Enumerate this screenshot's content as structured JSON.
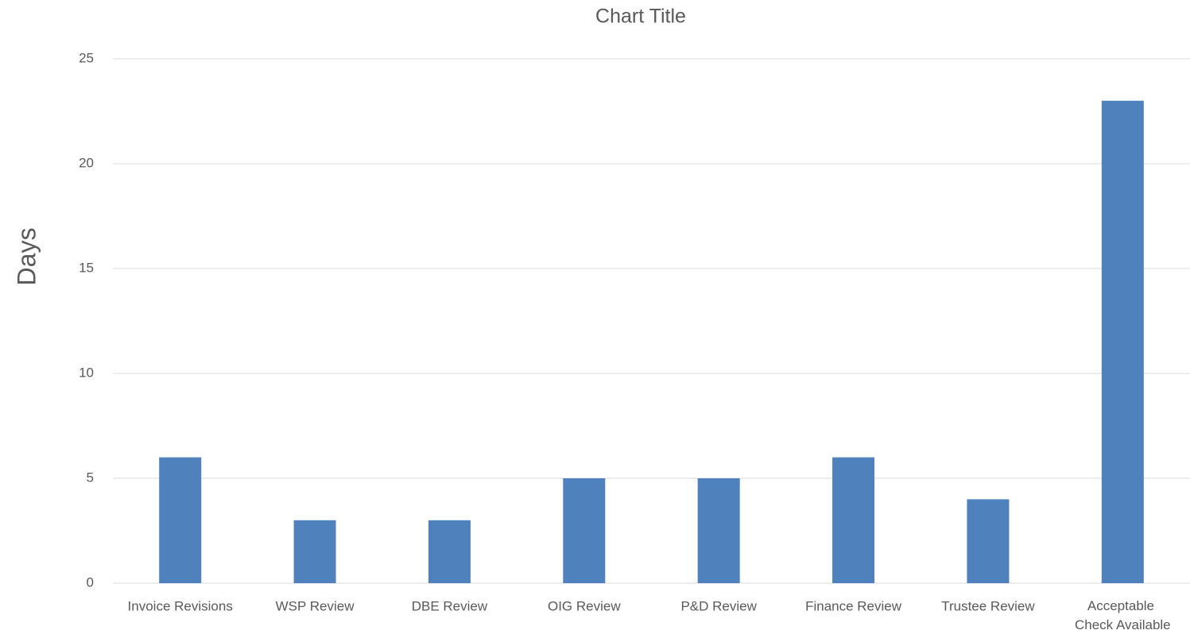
{
  "chart_data": {
    "type": "bar",
    "title": "Chart Title",
    "y_label": "Days",
    "categories": [
      "Invoice Revisions",
      "WSP Review",
      "DBE Review",
      "OIG Review",
      "P&D Review",
      "Finance Review",
      "Trustee Review",
      "Acceptable Check Available"
    ],
    "values": [
      6,
      3,
      3,
      5,
      5,
      6,
      4,
      23
    ],
    "color": "#4f81bd",
    "ylim": [
      0,
      25
    ],
    "yticks": [
      0,
      5,
      10,
      15,
      20,
      25
    ],
    "grid": true
  }
}
